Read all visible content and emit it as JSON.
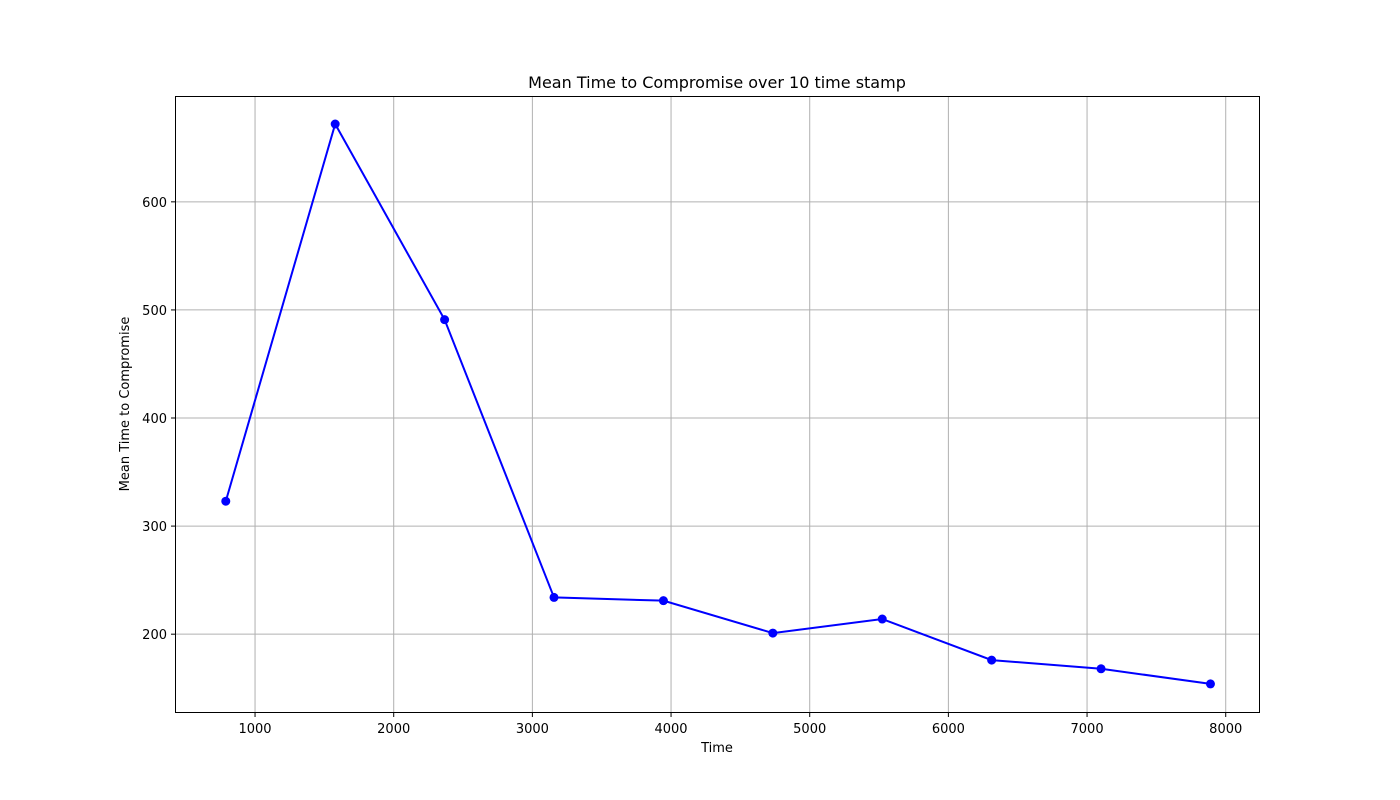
{
  "chart_data": {
    "type": "line",
    "title": "Mean Time to Compromise over 10 time stamp",
    "xlabel": "Time",
    "ylabel": "Mean Time to Compromise",
    "xlim": [
      430,
      8240
    ],
    "ylim": [
      128,
      697
    ],
    "xticks": [
      1000,
      2000,
      3000,
      4000,
      5000,
      6000,
      7000,
      8000
    ],
    "yticks": [
      200,
      300,
      400,
      500,
      600
    ],
    "grid": true,
    "series": [
      {
        "color": "#0000ff",
        "marker": "circle",
        "x": [
          789,
          1578,
          2367,
          3156,
          3945,
          4734,
          5523,
          6312,
          7101,
          7890
        ],
        "y": [
          323,
          672,
          491,
          234,
          231,
          201,
          214,
          176,
          168,
          154
        ]
      }
    ]
  }
}
